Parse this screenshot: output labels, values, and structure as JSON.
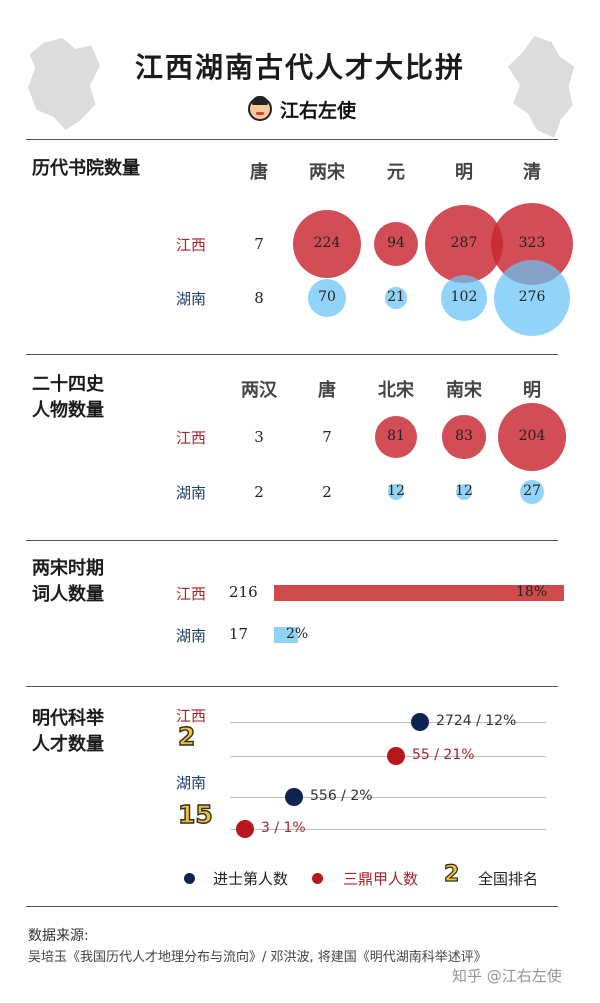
{
  "title": "江西湖南古代人才大比拼",
  "brand": "江右左使",
  "colors": {
    "jiangxi": "#c82630",
    "hunan": "#68c4f6",
    "jinshi": "#0d2452",
    "dingjia": "#b8151f",
    "rank": "#f2c12e"
  },
  "chart_data": [
    {
      "type": "scatter",
      "title": "历代书院数量",
      "categories": [
        "唐",
        "两宋",
        "元",
        "明",
        "清"
      ],
      "series": [
        {
          "name": "江西",
          "values": [
            7,
            224,
            94,
            287,
            323
          ]
        },
        {
          "name": "湖南",
          "values": [
            8,
            70,
            21,
            102,
            276
          ]
        }
      ]
    },
    {
      "type": "scatter",
      "title": "二十四史\n人物数量",
      "categories": [
        "两汉",
        "唐",
        "北宋",
        "南宋",
        "明"
      ],
      "series": [
        {
          "name": "江西",
          "values": [
            3,
            7,
            81,
            83,
            204
          ]
        },
        {
          "name": "湖南",
          "values": [
            2,
            2,
            12,
            12,
            27
          ]
        }
      ]
    },
    {
      "type": "bar",
      "title": "两宋时期\n词人数量",
      "categories": [
        "江西",
        "湖南"
      ],
      "values": [
        216,
        17
      ],
      "percent_labels": [
        "18%",
        "2%"
      ]
    },
    {
      "type": "scatter",
      "title": "明代科举\n人才数量",
      "categories": [
        "江西",
        "湖南"
      ],
      "series": [
        {
          "name": "进士第人数",
          "values": [
            2724,
            556
          ],
          "labels": [
            "2724 / 12%",
            "556 / 2%"
          ]
        },
        {
          "name": "三鼎甲人数",
          "values": [
            55,
            3
          ],
          "labels": [
            "55 / 21%",
            "3 / 1%"
          ]
        }
      ],
      "rank": [
        "2",
        "15"
      ],
      "legend": {
        "jinshi": "进士第人数",
        "dingjia": "三鼎甲人数",
        "rank_sample": "2",
        "rank_text": "全国排名"
      }
    }
  ],
  "source": {
    "title": "数据来源:",
    "text": "吴培玉《我国历代人才地理分布与流向》/ 邓洪波, 将建国《明代湖南科举述评》"
  },
  "watermark": "知乎 @江右左使"
}
